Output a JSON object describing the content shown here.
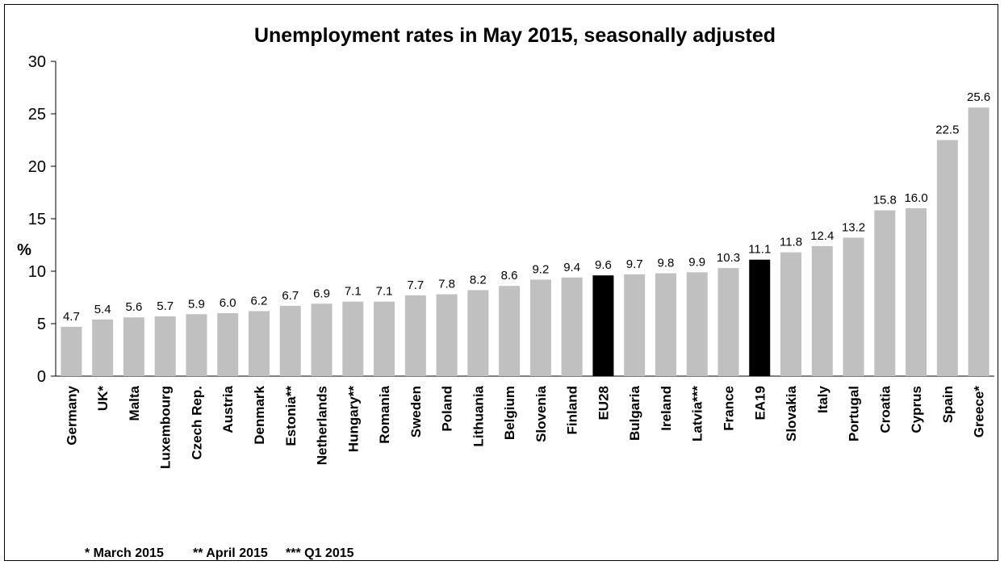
{
  "chart_data": {
    "type": "bar",
    "title": "Unemployment rates in May 2015, seasonally adjusted",
    "ylabel": "%",
    "xlabel": "",
    "ylim": [
      0,
      30
    ],
    "yticks": [
      0,
      5,
      10,
      15,
      20,
      25,
      30
    ],
    "grid": false,
    "colors": {
      "default": "#c0c0c0",
      "highlight": "#000000"
    },
    "highlighted": [
      "EU28",
      "EA19"
    ],
    "categories": [
      "Germany",
      "UK*",
      "Malta",
      "Luxembourg",
      "Czech Rep.",
      "Austria",
      "Denmark",
      "Estonia**",
      "Netherlands",
      "Hungary**",
      "Romania",
      "Sweden",
      "Poland",
      "Lithuania",
      "Belgium",
      "Slovenia",
      "Finland",
      "EU28",
      "Bulgaria",
      "Ireland",
      "Latvia***",
      "France",
      "EA19",
      "Slovakia",
      "Italy",
      "Portugal",
      "Croatia",
      "Cyprus",
      "Spain",
      "Greece*"
    ],
    "values": [
      4.7,
      5.4,
      5.6,
      5.7,
      5.9,
      6.0,
      6.2,
      6.7,
      6.9,
      7.1,
      7.1,
      7.7,
      7.8,
      8.2,
      8.6,
      9.2,
      9.4,
      9.6,
      9.7,
      9.8,
      9.9,
      10.3,
      11.1,
      11.8,
      12.4,
      13.2,
      15.8,
      16.0,
      22.5,
      25.6
    ],
    "footnotes": [
      "* March 2015",
      "** April 2015",
      "*** Q1 2015"
    ]
  }
}
